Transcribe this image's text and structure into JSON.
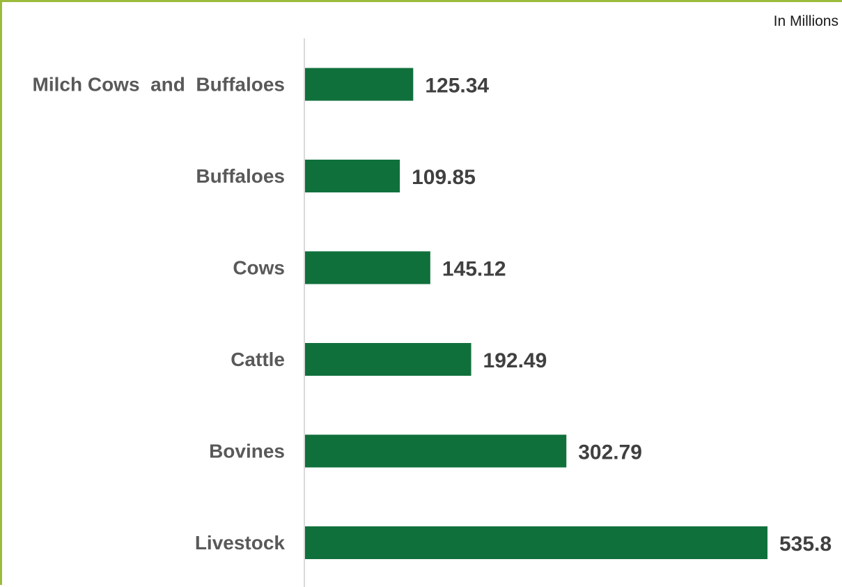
{
  "unit_note": "In Millions",
  "colors": {
    "bar": "#10703c",
    "frame": "#9bbb3c",
    "axis": "#d9d9d9",
    "category_text": "#595959",
    "value_text": "#404040"
  },
  "chart_data": {
    "type": "bar",
    "orientation": "horizontal",
    "categories": [
      "Milch Cows  and  Buffaloes",
      "Buffaloes",
      "Cows",
      "Cattle",
      "Bovines",
      "Livestock"
    ],
    "values": [
      125.34,
      109.85,
      145.12,
      192.49,
      302.79,
      535.8
    ],
    "value_labels": [
      "125.34",
      "109.85",
      "145.12",
      "192.49",
      "302.79",
      "535.8"
    ],
    "title": "",
    "xlabel": "",
    "ylabel": "",
    "xlim": [
      0,
      535.8
    ],
    "grid": false,
    "legend": "none"
  }
}
